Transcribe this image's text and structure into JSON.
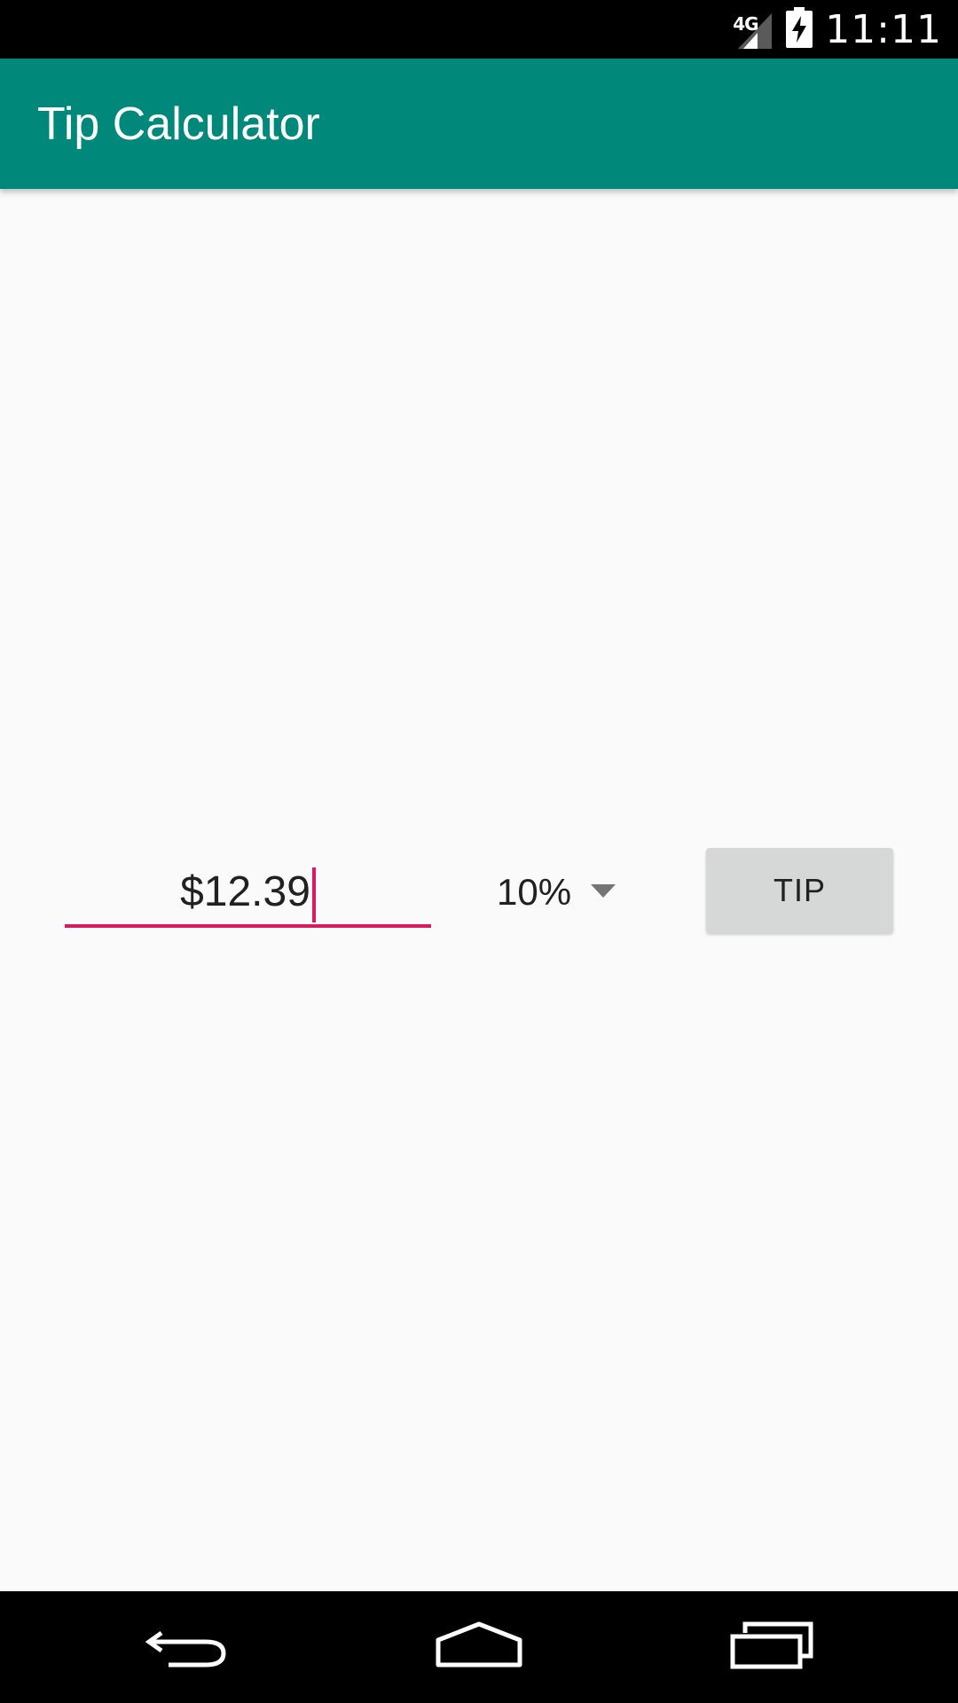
{
  "status_bar": {
    "network_label": "4G",
    "time": "11:11",
    "icons": [
      "signal-icon",
      "battery-charging-icon"
    ]
  },
  "app_bar": {
    "title": "Tip Calculator",
    "color": "#00897b"
  },
  "bill_input": {
    "value": "$12.39",
    "accent_color": "#d81b60"
  },
  "tip_percent_spinner": {
    "selected": "10%"
  },
  "tip_button": {
    "label": "TIP"
  },
  "nav_bar": {
    "icons": [
      "back-icon",
      "home-icon",
      "recents-icon"
    ]
  }
}
